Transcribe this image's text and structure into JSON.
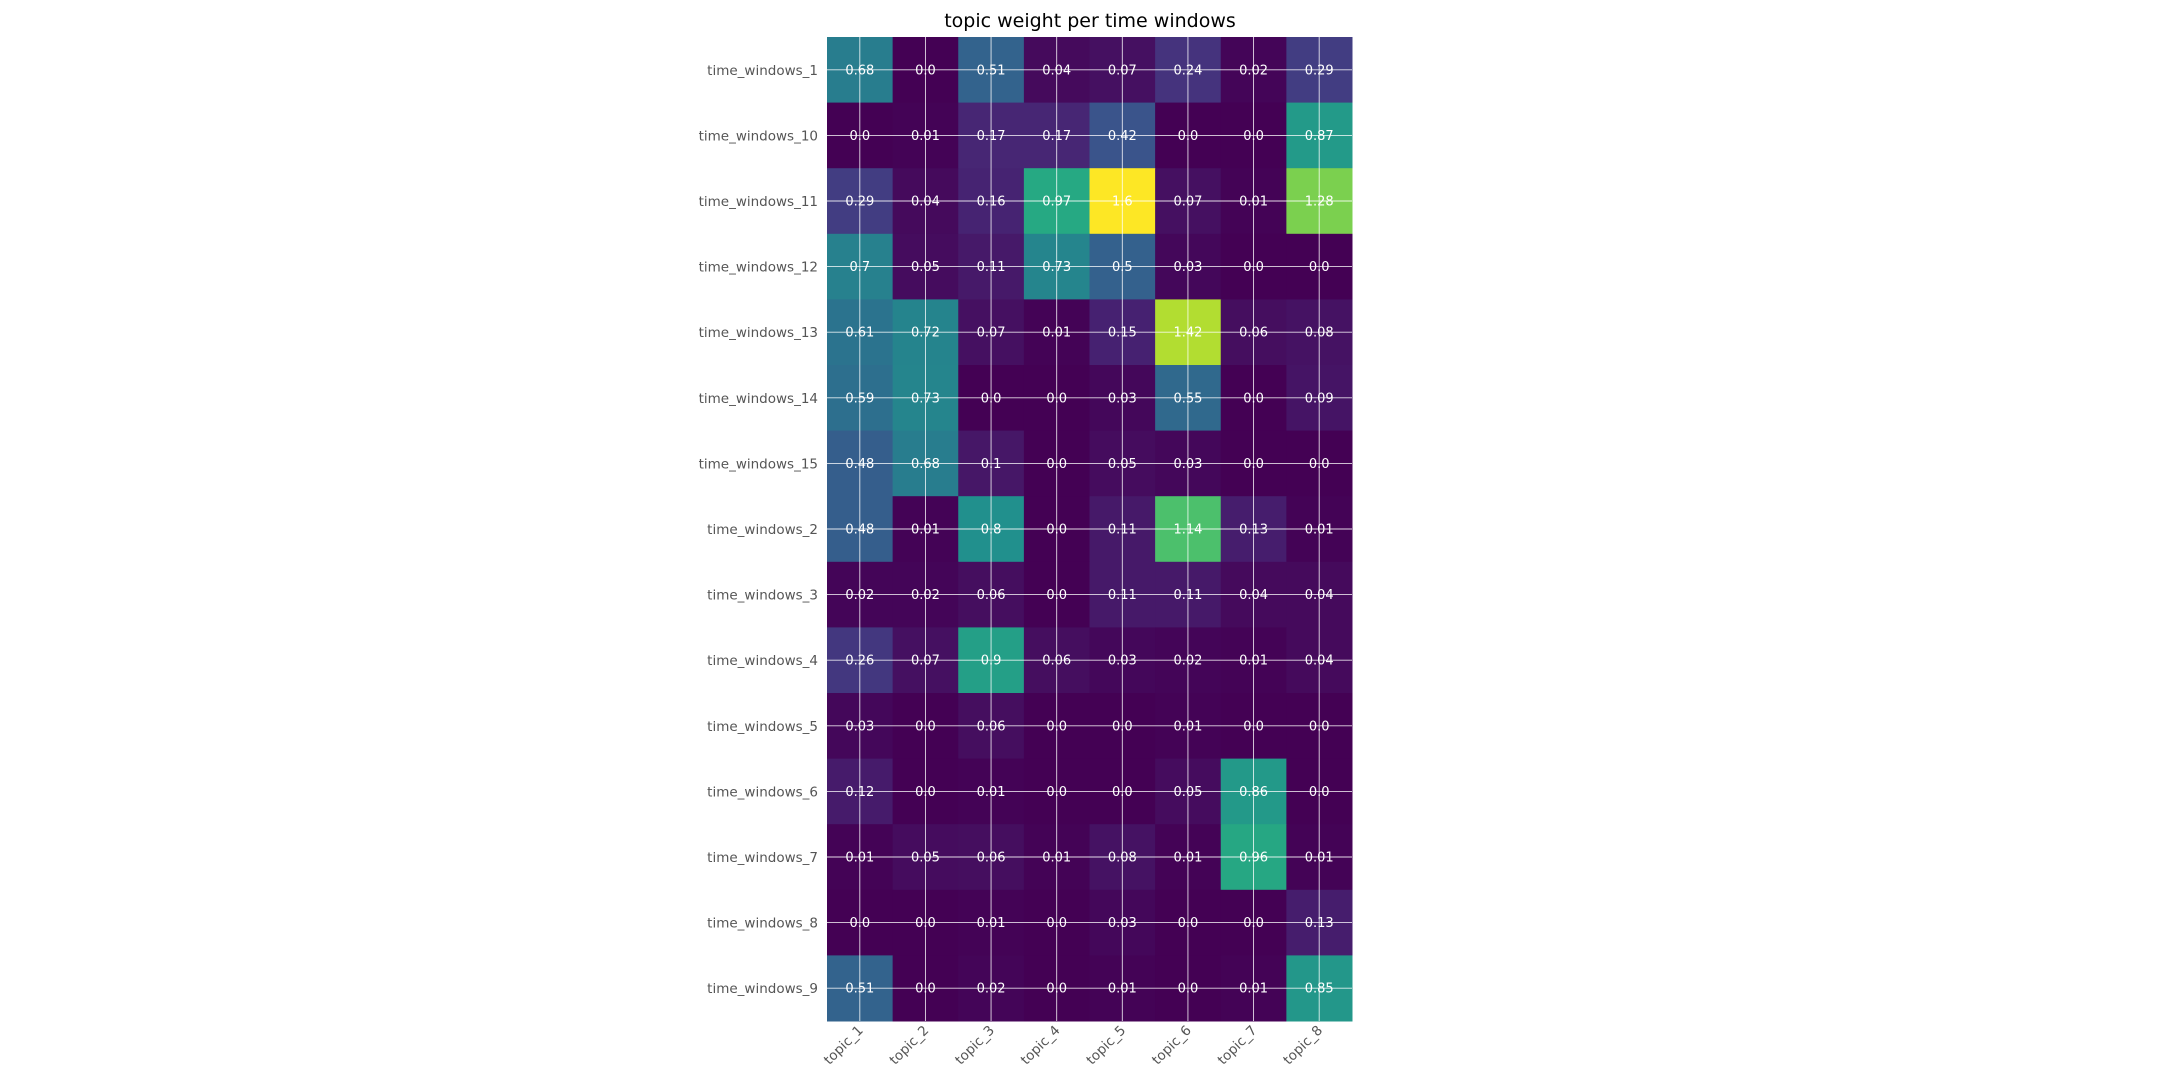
{
  "chart_data": {
    "type": "heatmap",
    "title": "topic weight per time windows",
    "columns": [
      "topic_1",
      "topic_2",
      "topic_3",
      "topic_4",
      "topic_5",
      "topic_6",
      "topic_7",
      "topic_8"
    ],
    "rows": [
      "time_windows_1",
      "time_windows_10",
      "time_windows_11",
      "time_windows_12",
      "time_windows_13",
      "time_windows_14",
      "time_windows_15",
      "time_windows_2",
      "time_windows_3",
      "time_windows_4",
      "time_windows_5",
      "time_windows_6",
      "time_windows_7",
      "time_windows_8",
      "time_windows_9"
    ],
    "values": [
      [
        0.68,
        0.0,
        0.51,
        0.04,
        0.07,
        0.24,
        0.02,
        0.29
      ],
      [
        0.0,
        0.01,
        0.17,
        0.17,
        0.42,
        0.0,
        0.0,
        0.87
      ],
      [
        0.29,
        0.04,
        0.16,
        0.97,
        1.6,
        0.07,
        0.01,
        1.28
      ],
      [
        0.7,
        0.05,
        0.11,
        0.73,
        0.5,
        0.03,
        0.0,
        0.0
      ],
      [
        0.61,
        0.72,
        0.07,
        0.01,
        0.15,
        1.42,
        0.06,
        0.08
      ],
      [
        0.59,
        0.73,
        0.0,
        0.0,
        0.03,
        0.55,
        0.0,
        0.09
      ],
      [
        0.48,
        0.68,
        0.1,
        0.0,
        0.05,
        0.03,
        0.0,
        0.0
      ],
      [
        0.48,
        0.01,
        0.8,
        0.0,
        0.11,
        1.14,
        0.13,
        0.01
      ],
      [
        0.02,
        0.02,
        0.06,
        0.0,
        0.11,
        0.11,
        0.04,
        0.04
      ],
      [
        0.26,
        0.07,
        0.9,
        0.06,
        0.03,
        0.02,
        0.01,
        0.04
      ],
      [
        0.03,
        0.0,
        0.06,
        0.0,
        0.0,
        0.01,
        0.0,
        0.0
      ],
      [
        0.12,
        0.0,
        0.01,
        0.0,
        0.0,
        0.05,
        0.86,
        0.0
      ],
      [
        0.01,
        0.05,
        0.06,
        0.01,
        0.08,
        0.01,
        0.96,
        0.01
      ],
      [
        0.0,
        0.0,
        0.01,
        0.0,
        0.03,
        0.0,
        0.0,
        0.13
      ],
      [
        0.51,
        0.0,
        0.02,
        0.0,
        0.01,
        0.0,
        0.01,
        0.85
      ]
    ],
    "vmin": 0.0,
    "vmax": 1.6,
    "colormap": "viridis",
    "grid": true,
    "grid_color": "#ffffff"
  }
}
